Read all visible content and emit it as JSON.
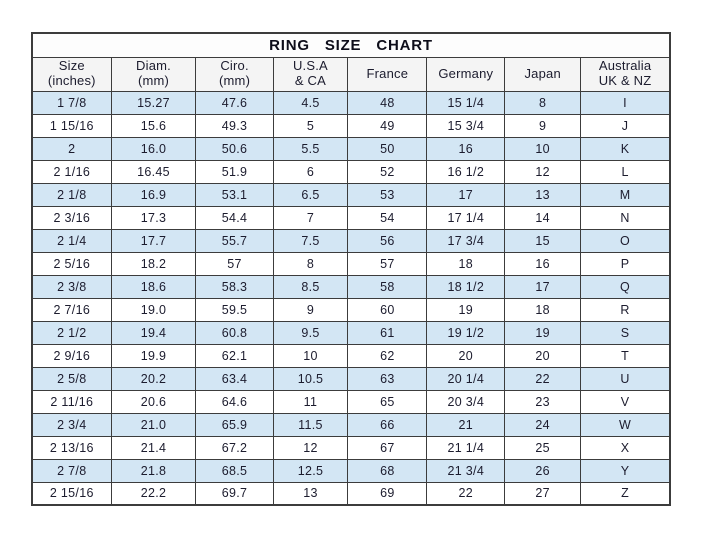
{
  "page": {
    "background_color": "#ffffff"
  },
  "chart_data": {
    "type": "table",
    "title": "RING SIZE CHART",
    "columns": [
      "Size (inches)",
      "Diam. (mm)",
      "Ciro. (mm)",
      "U.S.A & CA",
      "France",
      "Germany",
      "Japan",
      "Australia UK & NZ"
    ],
    "rows": [
      [
        "1 7/8",
        "15.27",
        "47.6",
        "4.5",
        "48",
        "15 1/4",
        "8",
        "I"
      ],
      [
        "1 15/16",
        "15.6",
        "49.3",
        "5",
        "49",
        "15 3/4",
        "9",
        "J"
      ],
      [
        "2",
        "16.0",
        "50.6",
        "5.5",
        "50",
        "16",
        "10",
        "K"
      ],
      [
        "2 1/16",
        "16.45",
        "51.9",
        "6",
        "52",
        "16 1/2",
        "12",
        "L"
      ],
      [
        "2 1/8",
        "16.9",
        "53.1",
        "6.5",
        "53",
        "17",
        "13",
        "M"
      ],
      [
        "2 3/16",
        "17.3",
        "54.4",
        "7",
        "54",
        "17 1/4",
        "14",
        "N"
      ],
      [
        "2 1/4",
        "17.7",
        "55.7",
        "7.5",
        "56",
        "17 3/4",
        "15",
        "O"
      ],
      [
        "2 5/16",
        "18.2",
        "57",
        "8",
        "57",
        "18",
        "16",
        "P"
      ],
      [
        "2 3/8",
        "18.6",
        "58.3",
        "8.5",
        "58",
        "18 1/2",
        "17",
        "Q"
      ],
      [
        "2 7/16",
        "19.0",
        "59.5",
        "9",
        "60",
        "19",
        "18",
        "R"
      ],
      [
        "2 1/2",
        "19.4",
        "60.8",
        "9.5",
        "61",
        "19 1/2",
        "19",
        "S"
      ],
      [
        "2 9/16",
        "19.9",
        "62.1",
        "10",
        "62",
        "20",
        "20",
        "T"
      ],
      [
        "2 5/8",
        "20.2",
        "63.4",
        "10.5",
        "63",
        "20 1/4",
        "22",
        "U"
      ],
      [
        "2 11/16",
        "20.6",
        "64.6",
        "11",
        "65",
        "20 3/4",
        "23",
        "V"
      ],
      [
        "2 3/4",
        "21.0",
        "65.9",
        "11.5",
        "66",
        "21",
        "24",
        "W"
      ],
      [
        "2 13/16",
        "21.4",
        "67.2",
        "12",
        "67",
        "21 1/4",
        "25",
        "X"
      ],
      [
        "2 7/8",
        "21.8",
        "68.5",
        "12.5",
        "68",
        "21 3/4",
        "26",
        "Y"
      ],
      [
        "2 15/16",
        "22.2",
        "69.7",
        "13",
        "69",
        "22",
        "27",
        "Z"
      ]
    ],
    "layout": {
      "alternating_row_shading": "odd rows shaded starting with first data row",
      "title_position": "top row spanning all columns"
    }
  },
  "table": {
    "columns_display": [
      {
        "line1": "Size",
        "line2": "(inches)"
      },
      {
        "line1": "Diam.",
        "line2": "(mm)"
      },
      {
        "line1": "Ciro.",
        "line2": "(mm)"
      },
      {
        "line1": "U.S.A",
        "line2": "& CA"
      },
      {
        "line1": "France",
        "line2": ""
      },
      {
        "line1": "Germany",
        "line2": ""
      },
      {
        "line1": "Japan",
        "line2": ""
      },
      {
        "line1": "Australia",
        "line2": "UK & NZ"
      }
    ],
    "column_widths_percent": [
      12.4,
      13.3,
      12.1,
      11.7,
      12.4,
      12.2,
      11.9,
      14.0
    ]
  },
  "colors": {
    "row_shade_blue": "#d3e6f4",
    "header_background": "#f4f4f4",
    "border": "#3c3c3c",
    "text": "#1c1c2e"
  }
}
